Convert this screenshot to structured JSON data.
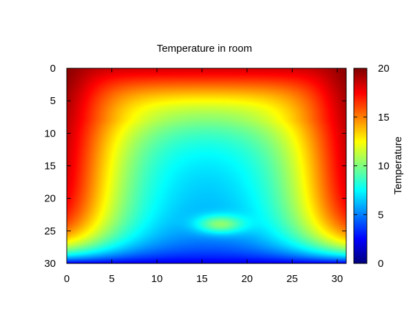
{
  "chart_data": {
    "type": "heatmap",
    "title": "Temperature in room",
    "xlabel": "",
    "ylabel": "",
    "x_ticks": [
      "0",
      "5",
      "10",
      "15",
      "20",
      "25",
      "30"
    ],
    "y_ticks": [
      "0",
      "5",
      "10",
      "15",
      "20",
      "25",
      "30"
    ],
    "xlim": [
      0,
      31
    ],
    "ylim": [
      0,
      30
    ],
    "y_axis_inverted": true,
    "grid": false,
    "colorbar": {
      "label": "Temperature",
      "range": [
        0,
        20
      ],
      "ticks": [
        "0",
        "5",
        "10",
        "15",
        "20"
      ],
      "colormap": "jet"
    },
    "grid_size": {
      "cols": 32,
      "rows": 31
    },
    "field_description": {
      "boundary_top_and_sides": 20,
      "bottom_boundary": 2,
      "interior_minimum": 5,
      "warm_spot_center": [
        17,
        24
      ],
      "warm_spot_value": 9.5
    }
  }
}
